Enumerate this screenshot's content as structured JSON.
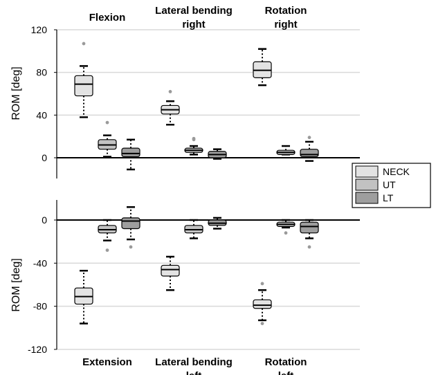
{
  "chart_data": [
    {
      "type": "box",
      "ylabel": "ROM [deg]",
      "ylim": [
        -20,
        120
      ],
      "yticks": [
        0,
        40,
        80,
        120
      ],
      "grid": true,
      "categories": [
        {
          "lines": [
            "Flexion"
          ]
        },
        {
          "lines": [
            "Lateral bending",
            "right"
          ]
        },
        {
          "lines": [
            "Rotation",
            "right"
          ]
        }
      ],
      "series": [
        {
          "name": "NECK",
          "color": "#e3e3e3",
          "boxes": [
            {
              "min": 38,
              "q1": 58,
              "median": 69,
              "q3": 77,
              "max": 86,
              "outliers": [
                107
              ]
            },
            {
              "min": 31,
              "q1": 41,
              "median": 45,
              "q3": 49,
              "max": 53,
              "outliers": [
                62
              ]
            },
            {
              "min": 68,
              "q1": 75,
              "median": 82,
              "q3": 90,
              "max": 102,
              "outliers": []
            }
          ]
        },
        {
          "name": "UT",
          "color": "#c2c2c2",
          "boxes": [
            {
              "min": 1,
              "q1": 8,
              "median": 12,
              "q3": 17,
              "max": 21,
              "outliers": [
                33
              ]
            },
            {
              "min": 3,
              "q1": 5,
              "median": 7,
              "q3": 9,
              "max": 11,
              "outliers": [
                17,
                18
              ]
            },
            {
              "min": 3,
              "q1": 3,
              "median": 5,
              "q3": 7,
              "max": 11,
              "outliers": []
            }
          ]
        },
        {
          "name": "LT",
          "color": "#9e9e9e",
          "boxes": [
            {
              "min": -11,
              "q1": 1,
              "median": 4,
              "q3": 9,
              "max": 17,
              "outliers": []
            },
            {
              "min": -1,
              "q1": 0,
              "median": 3,
              "q3": 6,
              "max": 8,
              "outliers": []
            },
            {
              "min": -3,
              "q1": 1,
              "median": 3,
              "q3": 8,
              "max": 15,
              "outliers": [
                19
              ]
            }
          ]
        }
      ]
    },
    {
      "type": "box",
      "ylabel": "ROM [deg]",
      "ylim": [
        -120,
        20
      ],
      "yticks": [
        -120,
        -80,
        -40,
        0
      ],
      "grid": true,
      "categories": [
        {
          "lines": [
            "Extension"
          ]
        },
        {
          "lines": [
            "Lateral bending",
            "left"
          ]
        },
        {
          "lines": [
            "Rotation",
            "left"
          ]
        }
      ],
      "series": [
        {
          "name": "NECK",
          "color": "#e3e3e3",
          "boxes": [
            {
              "min": -96,
              "q1": -78,
              "median": -71,
              "q3": -63,
              "max": -47,
              "outliers": []
            },
            {
              "min": -65,
              "q1": -52,
              "median": -46,
              "q3": -42,
              "max": -34,
              "outliers": []
            },
            {
              "min": -93,
              "q1": -82,
              "median": -79,
              "q3": -74,
              "max": -65,
              "outliers": [
                -59,
                -96
              ]
            }
          ]
        },
        {
          "name": "UT",
          "color": "#c2c2c2",
          "boxes": [
            {
              "min": -19,
              "q1": -12,
              "median": -9,
              "q3": -5,
              "max": 0,
              "outliers": [
                -28
              ]
            },
            {
              "min": -17,
              "q1": -12,
              "median": -9,
              "q3": -5,
              "max": 0,
              "outliers": []
            },
            {
              "min": -7,
              "q1": -6,
              "median": -4,
              "q3": -2,
              "max": 0,
              "outliers": [
                -12
              ]
            }
          ]
        },
        {
          "name": "LT",
          "color": "#9e9e9e",
          "boxes": [
            {
              "min": -18,
              "q1": -8,
              "median": -1,
              "q3": 2,
              "max": 12,
              "outliers": [
                -25
              ]
            },
            {
              "min": -8,
              "q1": -5,
              "median": -3,
              "q3": 0,
              "max": 2,
              "outliers": []
            },
            {
              "min": -17,
              "q1": -12,
              "median": -6,
              "q3": -2,
              "max": 0,
              "outliers": [
                -25
              ]
            }
          ]
        }
      ]
    }
  ],
  "legend": {
    "placement": "right",
    "entries": [
      {
        "label": "NECK",
        "color": "#e3e3e3"
      },
      {
        "label": "UT",
        "color": "#c2c2c2"
      },
      {
        "label": "LT",
        "color": "#9e9e9e"
      }
    ]
  }
}
